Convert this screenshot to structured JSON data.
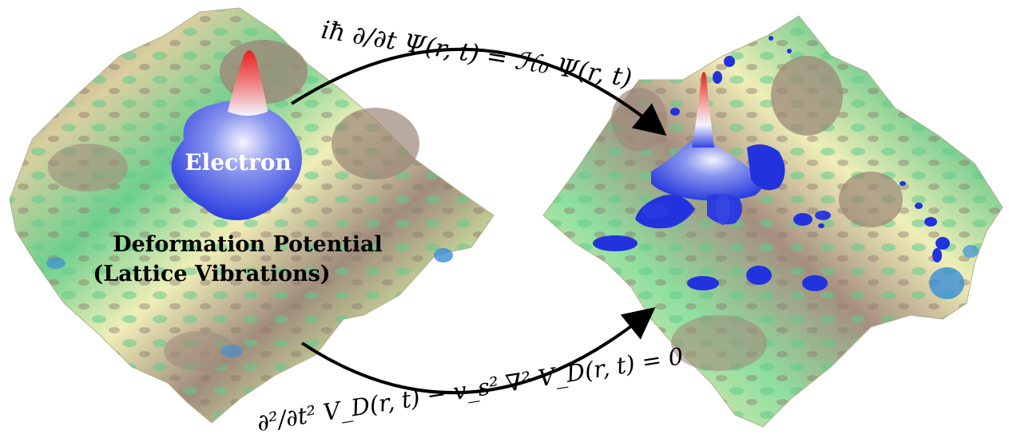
{
  "labels": {
    "electron": "Electron",
    "potential_line1": "Deformation Potential",
    "potential_line2": "(Lattice Vibrations)"
  },
  "equations": {
    "schrodinger": "iħ ∂/∂t Ψ(r, t) = ℋ₀ Ψ(r, t)",
    "wave": "∂²/∂t² V_D(r, t) − v_s² ∇² V_D(r, t) = 0"
  },
  "colors": {
    "surface_low": "#3a8fd8",
    "surface_mid": "#5fcf8a",
    "surface_light": "#f2f0b8",
    "surface_high": "#9a8678",
    "electron_core": "#2a3ee0",
    "electron_peak": "#e8201c",
    "arrow": "#000000"
  }
}
